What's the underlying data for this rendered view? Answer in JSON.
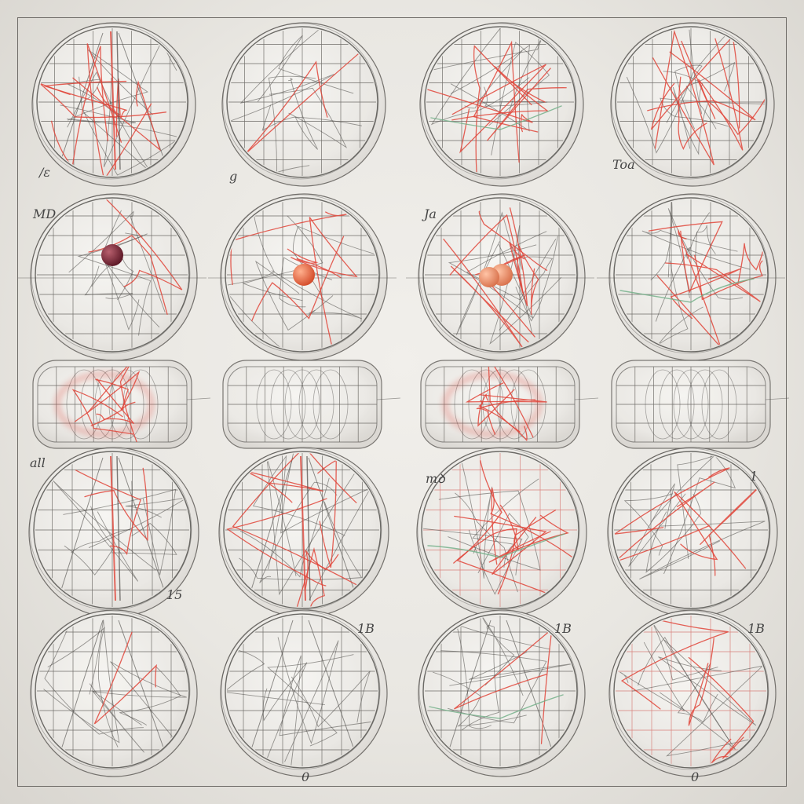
{
  "sheet": {
    "grid": {
      "rows": 5,
      "cols": 4
    },
    "colors": {
      "paper": "#ecebe6",
      "ink": "#4a4845",
      "grid_line": "#6e6b67",
      "red_line": "#e0453a",
      "green_line": "#6fae86",
      "maroon_ball": "#7a2735",
      "orange_ball": "#e4633f",
      "peach_ball": "#e5835c"
    },
    "marks": [
      {
        "row": 0,
        "col": 0,
        "text": "/ɛ"
      },
      {
        "row": 0,
        "col": 1,
        "text": "g"
      },
      {
        "row": 0,
        "col": 3,
        "text": "Toa"
      },
      {
        "row": 1,
        "col": 0,
        "text": "MD"
      },
      {
        "row": 1,
        "col": 2,
        "text": "Ja"
      },
      {
        "row": 3,
        "col": 0,
        "text": "all"
      },
      {
        "row": 3,
        "col": 0,
        "text": "15"
      },
      {
        "row": 3,
        "col": 2,
        "text": "mꝺ"
      },
      {
        "row": 3,
        "col": 3,
        "text": "1"
      },
      {
        "row": 4,
        "col": 1,
        "text": "0"
      },
      {
        "row": 4,
        "col": 1,
        "text": "1B"
      },
      {
        "row": 4,
        "col": 2,
        "text": "1B"
      },
      {
        "row": 4,
        "col": 3,
        "text": "1B"
      },
      {
        "row": 4,
        "col": 3,
        "text": "0"
      }
    ]
  }
}
